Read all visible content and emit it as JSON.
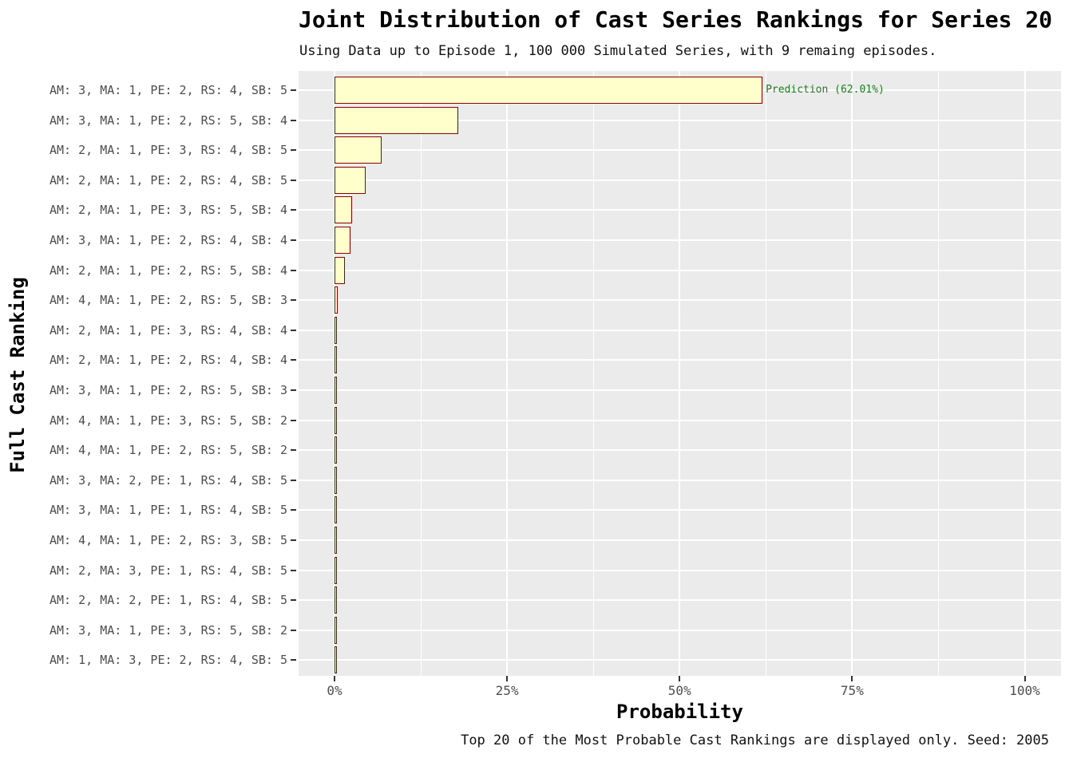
{
  "chart_data": {
    "type": "bar",
    "orientation": "horizontal",
    "title": "Joint Distribution of Cast Series Rankings for Series 20",
    "subtitle": "Using Data up to Episode 1, 100 000 Simulated Series, with 9 remaing episodes.",
    "caption": "Top 20 of the Most Probable Cast Rankings are displayed only. Seed: 2005",
    "xlabel": "Probability",
    "ylabel": "Full Cast Ranking",
    "xlim": [
      0,
      100
    ],
    "x_tick_labels": [
      "0%",
      "25%",
      "50%",
      "75%",
      "100%"
    ],
    "x_tick_values": [
      0,
      25,
      50,
      75,
      100
    ],
    "minor_grid_values": [
      12.5,
      37.5,
      62.5,
      87.5
    ],
    "grid": "on",
    "legend": "none",
    "categories": [
      "AM: 3, MA: 1, PE: 2, RS: 4, SB: 5",
      "AM: 3, MA: 1, PE: 2, RS: 5, SB: 4",
      "AM: 2, MA: 1, PE: 3, RS: 4, SB: 5",
      "AM: 2, MA: 1, PE: 2, RS: 4, SB: 5",
      "AM: 2, MA: 1, PE: 3, RS: 5, SB: 4",
      "AM: 3, MA: 1, PE: 2, RS: 4, SB: 4",
      "AM: 2, MA: 1, PE: 2, RS: 5, SB: 4",
      "AM: 4, MA: 1, PE: 2, RS: 5, SB: 3",
      "AM: 2, MA: 1, PE: 3, RS: 4, SB: 4",
      "AM: 2, MA: 1, PE: 2, RS: 4, SB: 4",
      "AM: 3, MA: 1, PE: 2, RS: 5, SB: 3",
      "AM: 4, MA: 1, PE: 3, RS: 5, SB: 2",
      "AM: 4, MA: 1, PE: 2, RS: 5, SB: 2",
      "AM: 3, MA: 2, PE: 1, RS: 4, SB: 5",
      "AM: 3, MA: 1, PE: 1, RS: 4, SB: 5",
      "AM: 4, MA: 1, PE: 2, RS: 3, SB: 5",
      "AM: 2, MA: 3, PE: 1, RS: 4, SB: 5",
      "AM: 2, MA: 2, PE: 1, RS: 4, SB: 5",
      "AM: 3, MA: 1, PE: 3, RS: 5, SB: 2",
      "AM: 1, MA: 3, PE: 2, RS: 4, SB: 5"
    ],
    "values": [
      62.01,
      17.9,
      6.8,
      4.55,
      2.6,
      2.35,
      1.5,
      0.5,
      0.25,
      0.12,
      0.1,
      0.09,
      0.08,
      0.06,
      0.05,
      0.05,
      0.04,
      0.03,
      0.03,
      0.02
    ],
    "annotation": {
      "text": "Prediction (62.01%)",
      "row": 0,
      "value": 62.01
    },
    "colors": {
      "bar_fill": "#FFFFCC",
      "bar_border": "#8B0000",
      "panel_bg": "#EBEBEB",
      "grid": "#FFFFFF",
      "annotation_text": "#1E7D1E",
      "axis_text": "#4D4D4D",
      "tick_mark": "#333333"
    }
  }
}
